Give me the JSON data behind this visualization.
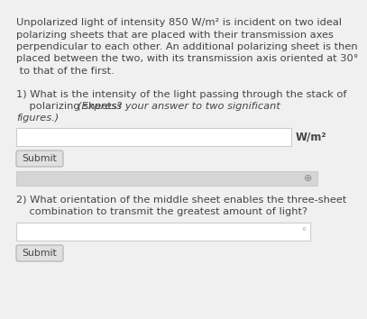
{
  "bg_color": "#f0f0f0",
  "text_color": "#444444",
  "para_line1": "Unpolarized light of intensity 850 W/m² is incident on two ideal",
  "para_line2": "polarizing sheets that are placed with their transmission axes",
  "para_line3": "perpendicular to each other. An additional polarizing sheet is then",
  "para_line4": "placed between the two, with its transmission axis oriented at 30°",
  "para_line5": " to that of the first.",
  "q1_line1": "1) What is the intensity of the light passing through the stack of",
  "q1_line2": "    polarizing sheets?  (Express your answer to two significant",
  "q1_line2_normal": "    polarizing sheets? ",
  "q1_line2_italic": "(Express your answer to two significant",
  "q1_line3_italic": "figures.)",
  "q1_unit": "W/m²",
  "q2_line1": "2) What orientation of the middle sheet enables the three-sheet",
  "q2_line2": "    combination to transmit the greatest amount of light?",
  "submit_label": "Submit",
  "input_box_color": "#ffffff",
  "input_box_border": "#cccccc",
  "submit_box_color": "#e0e0e0",
  "submit_box_border": "#b0b0b0",
  "hint_bar_color": "#d5d5d5",
  "hint_bar_border": "#c0c0c0",
  "degree_symbol": "°",
  "plus_symbol": "⊕",
  "font_size_para": 8.2,
  "font_size_q": 8.2,
  "font_size_submit": 7.8,
  "font_size_unit": 8.5
}
